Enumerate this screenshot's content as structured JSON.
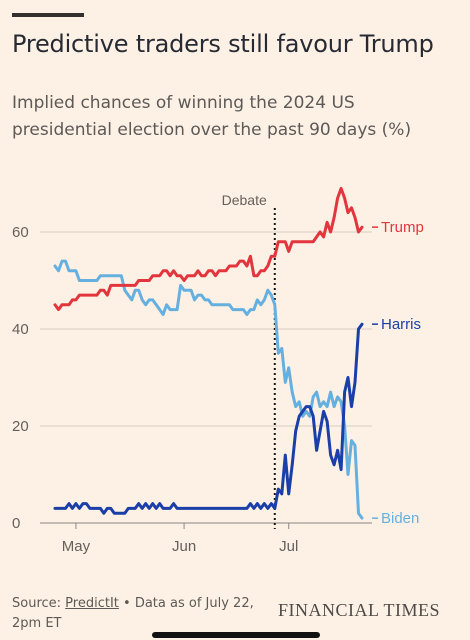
{
  "header": {
    "title": "Predictive traders still favour Trump",
    "subtitle": "Implied chances of winning the 2024 US presidential election over the past 90 days (%)"
  },
  "footer": {
    "source_prefix": "Source:",
    "source_name": "PredictIt",
    "source_suffix": "• Data as of July 22, 2pm ET",
    "brand": "FINANCIAL TIMES"
  },
  "chart_data": {
    "type": "line",
    "title": "Predictive traders still favour Trump",
    "subtitle": "Implied chances of winning the 2024 US presidential election over the past 90 days (%)",
    "xlabel": "",
    "ylabel": "",
    "x_ticks": [
      "May",
      "Jun",
      "Jul"
    ],
    "y_ticks": [
      0,
      20,
      40,
      60
    ],
    "ylim": [
      0,
      72
    ],
    "grid": "horizontal",
    "legend": "direct labels at line ends",
    "annotation": {
      "label": "Debate",
      "x": "2024-06-27"
    },
    "series": [
      {
        "name": "Trump",
        "color": "#e3353d",
        "points": [
          [
            "2024-04-25",
            45
          ],
          [
            "2024-04-26",
            44
          ],
          [
            "2024-04-27",
            45
          ],
          [
            "2024-04-28",
            45
          ],
          [
            "2024-04-29",
            45
          ],
          [
            "2024-04-30",
            46
          ],
          [
            "2024-05-01",
            46
          ],
          [
            "2024-05-02",
            47
          ],
          [
            "2024-05-03",
            47
          ],
          [
            "2024-05-04",
            47
          ],
          [
            "2024-05-05",
            47
          ],
          [
            "2024-05-06",
            47
          ],
          [
            "2024-05-07",
            47
          ],
          [
            "2024-05-08",
            48
          ],
          [
            "2024-05-09",
            48
          ],
          [
            "2024-05-10",
            47
          ],
          [
            "2024-05-11",
            49
          ],
          [
            "2024-05-12",
            49
          ],
          [
            "2024-05-13",
            49
          ],
          [
            "2024-05-14",
            49
          ],
          [
            "2024-05-15",
            49
          ],
          [
            "2024-05-16",
            49
          ],
          [
            "2024-05-17",
            49
          ],
          [
            "2024-05-18",
            49
          ],
          [
            "2024-05-19",
            50
          ],
          [
            "2024-05-20",
            50
          ],
          [
            "2024-05-21",
            50
          ],
          [
            "2024-05-22",
            50
          ],
          [
            "2024-05-23",
            51
          ],
          [
            "2024-05-24",
            51
          ],
          [
            "2024-05-25",
            51
          ],
          [
            "2024-05-26",
            52
          ],
          [
            "2024-05-27",
            52
          ],
          [
            "2024-05-28",
            51
          ],
          [
            "2024-05-29",
            52
          ],
          [
            "2024-05-30",
            51
          ],
          [
            "2024-05-31",
            51
          ],
          [
            "2024-06-01",
            50
          ],
          [
            "2024-06-02",
            51
          ],
          [
            "2024-06-03",
            51
          ],
          [
            "2024-06-04",
            51
          ],
          [
            "2024-06-05",
            52
          ],
          [
            "2024-06-06",
            51
          ],
          [
            "2024-06-07",
            51
          ],
          [
            "2024-06-08",
            52
          ],
          [
            "2024-06-09",
            52
          ],
          [
            "2024-06-10",
            51
          ],
          [
            "2024-06-11",
            52
          ],
          [
            "2024-06-12",
            52
          ],
          [
            "2024-06-13",
            52
          ],
          [
            "2024-06-14",
            53
          ],
          [
            "2024-06-15",
            53
          ],
          [
            "2024-06-16",
            53
          ],
          [
            "2024-06-17",
            54
          ],
          [
            "2024-06-18",
            54
          ],
          [
            "2024-06-19",
            53
          ],
          [
            "2024-06-20",
            55
          ],
          [
            "2024-06-21",
            51
          ],
          [
            "2024-06-22",
            51
          ],
          [
            "2024-06-23",
            52
          ],
          [
            "2024-06-24",
            52
          ],
          [
            "2024-06-25",
            53
          ],
          [
            "2024-06-26",
            55
          ],
          [
            "2024-06-27",
            55
          ],
          [
            "2024-06-28",
            58
          ],
          [
            "2024-06-29",
            58
          ],
          [
            "2024-06-30",
            58
          ],
          [
            "2024-07-01",
            56
          ],
          [
            "2024-07-02",
            58
          ],
          [
            "2024-07-03",
            58
          ],
          [
            "2024-07-04",
            58
          ],
          [
            "2024-07-05",
            58
          ],
          [
            "2024-07-06",
            58
          ],
          [
            "2024-07-07",
            58
          ],
          [
            "2024-07-08",
            58
          ],
          [
            "2024-07-09",
            59
          ],
          [
            "2024-07-10",
            60
          ],
          [
            "2024-07-11",
            59
          ],
          [
            "2024-07-12",
            62
          ],
          [
            "2024-07-13",
            60
          ],
          [
            "2024-07-14",
            63
          ],
          [
            "2024-07-15",
            67
          ],
          [
            "2024-07-16",
            69
          ],
          [
            "2024-07-17",
            67
          ],
          [
            "2024-07-18",
            64
          ],
          [
            "2024-07-19",
            65
          ],
          [
            "2024-07-20",
            63
          ],
          [
            "2024-07-21",
            60
          ],
          [
            "2024-07-22",
            61
          ]
        ]
      },
      {
        "name": "Harris",
        "color": "#1a3fa8",
        "points": [
          [
            "2024-04-25",
            3
          ],
          [
            "2024-04-26",
            3
          ],
          [
            "2024-04-27",
            3
          ],
          [
            "2024-04-28",
            3
          ],
          [
            "2024-04-29",
            4
          ],
          [
            "2024-04-30",
            3
          ],
          [
            "2024-05-01",
            4
          ],
          [
            "2024-05-02",
            3
          ],
          [
            "2024-05-03",
            4
          ],
          [
            "2024-05-04",
            4
          ],
          [
            "2024-05-05",
            3
          ],
          [
            "2024-05-06",
            3
          ],
          [
            "2024-05-07",
            3
          ],
          [
            "2024-05-08",
            3
          ],
          [
            "2024-05-09",
            2
          ],
          [
            "2024-05-10",
            3
          ],
          [
            "2024-05-11",
            3
          ],
          [
            "2024-05-12",
            2
          ],
          [
            "2024-05-13",
            2
          ],
          [
            "2024-05-14",
            2
          ],
          [
            "2024-05-15",
            2
          ],
          [
            "2024-05-16",
            3
          ],
          [
            "2024-05-17",
            3
          ],
          [
            "2024-05-18",
            3
          ],
          [
            "2024-05-19",
            4
          ],
          [
            "2024-05-20",
            3
          ],
          [
            "2024-05-21",
            4
          ],
          [
            "2024-05-22",
            3
          ],
          [
            "2024-05-23",
            4
          ],
          [
            "2024-05-24",
            3
          ],
          [
            "2024-05-25",
            4
          ],
          [
            "2024-05-26",
            3
          ],
          [
            "2024-05-27",
            3
          ],
          [
            "2024-05-28",
            3
          ],
          [
            "2024-05-29",
            4
          ],
          [
            "2024-05-30",
            3
          ],
          [
            "2024-05-31",
            3
          ],
          [
            "2024-06-01",
            3
          ],
          [
            "2024-06-02",
            3
          ],
          [
            "2024-06-03",
            3
          ],
          [
            "2024-06-04",
            3
          ],
          [
            "2024-06-05",
            3
          ],
          [
            "2024-06-06",
            3
          ],
          [
            "2024-06-07",
            3
          ],
          [
            "2024-06-08",
            3
          ],
          [
            "2024-06-09",
            3
          ],
          [
            "2024-06-10",
            3
          ],
          [
            "2024-06-11",
            3
          ],
          [
            "2024-06-12",
            3
          ],
          [
            "2024-06-13",
            3
          ],
          [
            "2024-06-14",
            3
          ],
          [
            "2024-06-15",
            3
          ],
          [
            "2024-06-16",
            3
          ],
          [
            "2024-06-17",
            3
          ],
          [
            "2024-06-18",
            3
          ],
          [
            "2024-06-19",
            3
          ],
          [
            "2024-06-20",
            4
          ],
          [
            "2024-06-21",
            3
          ],
          [
            "2024-06-22",
            4
          ],
          [
            "2024-06-23",
            3
          ],
          [
            "2024-06-24",
            4
          ],
          [
            "2024-06-25",
            3
          ],
          [
            "2024-06-26",
            4
          ],
          [
            "2024-06-27",
            3
          ],
          [
            "2024-06-28",
            7
          ],
          [
            "2024-06-29",
            6
          ],
          [
            "2024-06-30",
            14
          ],
          [
            "2024-07-01",
            6
          ],
          [
            "2024-07-02",
            12
          ],
          [
            "2024-07-03",
            19
          ],
          [
            "2024-07-04",
            22
          ],
          [
            "2024-07-05",
            23
          ],
          [
            "2024-07-06",
            24
          ],
          [
            "2024-07-07",
            24
          ],
          [
            "2024-07-08",
            22
          ],
          [
            "2024-07-09",
            15
          ],
          [
            "2024-07-10",
            19
          ],
          [
            "2024-07-11",
            23
          ],
          [
            "2024-07-12",
            21
          ],
          [
            "2024-07-13",
            14
          ],
          [
            "2024-07-14",
            12
          ],
          [
            "2024-07-15",
            15
          ],
          [
            "2024-07-16",
            11
          ],
          [
            "2024-07-17",
            27
          ],
          [
            "2024-07-18",
            30
          ],
          [
            "2024-07-19",
            24
          ],
          [
            "2024-07-20",
            29
          ],
          [
            "2024-07-21",
            40
          ],
          [
            "2024-07-22",
            41
          ]
        ]
      },
      {
        "name": "Biden",
        "color": "#66b0e0",
        "points": [
          [
            "2024-04-25",
            53
          ],
          [
            "2024-04-26",
            52
          ],
          [
            "2024-04-27",
            54
          ],
          [
            "2024-04-28",
            54
          ],
          [
            "2024-04-29",
            52
          ],
          [
            "2024-04-30",
            52
          ],
          [
            "2024-05-01",
            52
          ],
          [
            "2024-05-02",
            50
          ],
          [
            "2024-05-03",
            50
          ],
          [
            "2024-05-04",
            50
          ],
          [
            "2024-05-05",
            50
          ],
          [
            "2024-05-06",
            50
          ],
          [
            "2024-05-07",
            50
          ],
          [
            "2024-05-08",
            51
          ],
          [
            "2024-05-09",
            51
          ],
          [
            "2024-05-10",
            51
          ],
          [
            "2024-05-11",
            51
          ],
          [
            "2024-05-12",
            51
          ],
          [
            "2024-05-13",
            51
          ],
          [
            "2024-05-14",
            51
          ],
          [
            "2024-05-15",
            48
          ],
          [
            "2024-05-16",
            47
          ],
          [
            "2024-05-17",
            46
          ],
          [
            "2024-05-18",
            48
          ],
          [
            "2024-05-19",
            48
          ],
          [
            "2024-05-20",
            46
          ],
          [
            "2024-05-21",
            45
          ],
          [
            "2024-05-22",
            46
          ],
          [
            "2024-05-23",
            46
          ],
          [
            "2024-05-24",
            45
          ],
          [
            "2024-05-25",
            44
          ],
          [
            "2024-05-26",
            43
          ],
          [
            "2024-05-27",
            45
          ],
          [
            "2024-05-28",
            44
          ],
          [
            "2024-05-29",
            44
          ],
          [
            "2024-05-30",
            44
          ],
          [
            "2024-05-31",
            49
          ],
          [
            "2024-06-01",
            48
          ],
          [
            "2024-06-02",
            48
          ],
          [
            "2024-06-03",
            48
          ],
          [
            "2024-06-04",
            46
          ],
          [
            "2024-06-05",
            47
          ],
          [
            "2024-06-06",
            47
          ],
          [
            "2024-06-07",
            46
          ],
          [
            "2024-06-08",
            46
          ],
          [
            "2024-06-09",
            45
          ],
          [
            "2024-06-10",
            45
          ],
          [
            "2024-06-11",
            45
          ],
          [
            "2024-06-12",
            45
          ],
          [
            "2024-06-13",
            45
          ],
          [
            "2024-06-14",
            45
          ],
          [
            "2024-06-15",
            44
          ],
          [
            "2024-06-16",
            44
          ],
          [
            "2024-06-17",
            44
          ],
          [
            "2024-06-18",
            44
          ],
          [
            "2024-06-19",
            43
          ],
          [
            "2024-06-20",
            44
          ],
          [
            "2024-06-21",
            44
          ],
          [
            "2024-06-22",
            46
          ],
          [
            "2024-06-23",
            45
          ],
          [
            "2024-06-24",
            46
          ],
          [
            "2024-06-25",
            48
          ],
          [
            "2024-06-26",
            47
          ],
          [
            "2024-06-27",
            45
          ],
          [
            "2024-06-28",
            35
          ],
          [
            "2024-06-29",
            36
          ],
          [
            "2024-06-30",
            29
          ],
          [
            "2024-07-01",
            32
          ],
          [
            "2024-07-02",
            27
          ],
          [
            "2024-07-03",
            24
          ],
          [
            "2024-07-04",
            25
          ],
          [
            "2024-07-05",
            22
          ],
          [
            "2024-07-06",
            23
          ],
          [
            "2024-07-07",
            22
          ],
          [
            "2024-07-08",
            26
          ],
          [
            "2024-07-09",
            27
          ],
          [
            "2024-07-10",
            24
          ],
          [
            "2024-07-11",
            25
          ],
          [
            "2024-07-12",
            24
          ],
          [
            "2024-07-13",
            27
          ],
          [
            "2024-07-14",
            24
          ],
          [
            "2024-07-15",
            26
          ],
          [
            "2024-07-16",
            25
          ],
          [
            "2024-07-17",
            20
          ],
          [
            "2024-07-18",
            10
          ],
          [
            "2024-07-19",
            17
          ],
          [
            "2024-07-20",
            16
          ],
          [
            "2024-07-21",
            2
          ],
          [
            "2024-07-22",
            1
          ]
        ]
      }
    ]
  }
}
